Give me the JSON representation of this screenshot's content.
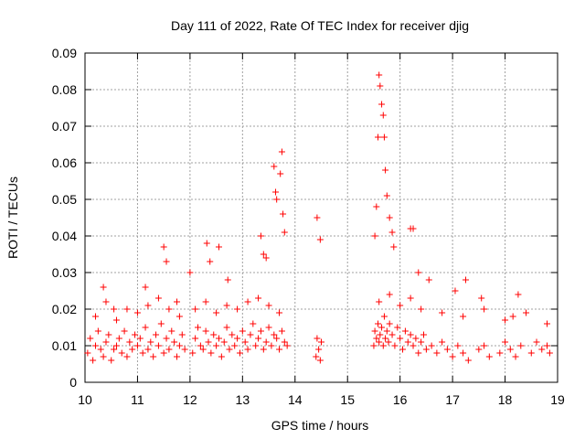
{
  "chart_data": {
    "type": "scatter",
    "title": "Day 111 of 2022, Rate Of TEC Index for receiver djig",
    "xlabel": "GPS time / hours",
    "ylabel": "ROTI / TECUs",
    "xlim": [
      10,
      19
    ],
    "ylim": [
      0,
      0.09
    ],
    "xticks": [
      10,
      11,
      12,
      13,
      14,
      15,
      16,
      17,
      18,
      19
    ],
    "yticks": [
      0,
      0.01,
      0.02,
      0.03,
      0.04,
      0.05,
      0.06,
      0.07,
      0.08,
      0.09
    ],
    "xtick_labels": [
      "10",
      "11",
      "12",
      "13",
      "14",
      "15",
      "16",
      "17",
      "18",
      "19"
    ],
    "ytick_labels": [
      "0",
      "0.01",
      "0.02",
      "0.03",
      "0.04",
      "0.05",
      "0.06",
      "0.07",
      "0.08",
      "0.09"
    ],
    "grid": true,
    "marker": "+",
    "color": "#ff0000",
    "series": [
      {
        "name": "ROTI",
        "x": [
          10.05,
          10.1,
          10.15,
          10.2,
          10.25,
          10.3,
          10.35,
          10.4,
          10.45,
          10.5,
          10.55,
          10.6,
          10.65,
          10.7,
          10.75,
          10.8,
          10.85,
          10.9,
          10.95,
          11.0,
          11.05,
          11.1,
          11.15,
          11.2,
          11.25,
          11.3,
          11.35,
          11.4,
          11.45,
          11.5,
          11.55,
          11.6,
          11.65,
          11.7,
          11.75,
          11.8,
          11.85,
          11.9,
          12.05,
          12.1,
          12.15,
          12.2,
          12.25,
          12.3,
          12.35,
          12.4,
          12.45,
          12.5,
          12.55,
          12.6,
          12.65,
          12.7,
          12.75,
          12.8,
          12.85,
          12.9,
          12.95,
          13.0,
          13.05,
          13.1,
          13.15,
          13.2,
          13.25,
          13.3,
          13.35,
          13.4,
          13.45,
          13.5,
          13.55,
          13.6,
          13.65,
          13.7,
          13.75,
          13.8,
          13.85,
          14.4,
          14.42,
          14.45,
          14.48,
          14.5,
          15.5,
          15.52,
          15.55,
          15.58,
          15.6,
          15.62,
          15.65,
          15.68,
          15.7,
          15.72,
          15.75,
          15.78,
          15.8,
          15.85,
          15.9,
          15.95,
          16.0,
          16.05,
          16.1,
          16.15,
          16.2,
          16.25,
          16.3,
          16.35,
          16.4,
          16.45,
          16.5,
          16.6,
          16.7,
          16.8,
          16.9,
          17.0,
          17.1,
          17.2,
          17.3,
          17.5,
          17.6,
          17.7,
          17.9,
          18.0,
          18.1,
          18.2,
          18.3,
          18.5,
          18.6,
          18.7,
          18.8,
          18.85,
          10.2,
          10.4,
          10.6,
          10.8,
          11.0,
          11.2,
          11.4,
          11.6,
          11.8,
          12.1,
          12.3,
          12.5,
          12.7,
          12.9,
          13.1,
          13.3,
          13.5,
          13.7,
          15.6,
          15.8,
          16.0,
          16.2,
          16.4,
          16.8,
          17.2,
          17.6,
          18.0,
          18.4,
          18.8,
          10.35,
          10.55,
          11.15,
          11.5,
          11.55,
          11.75,
          12.0,
          12.32,
          12.38,
          12.55,
          12.72,
          13.35,
          13.4,
          13.45,
          13.6,
          13.63,
          13.65,
          13.72,
          13.75,
          13.77,
          13.8,
          14.42,
          14.48,
          15.52,
          15.55,
          15.58,
          15.6,
          15.62,
          15.65,
          15.68,
          15.7,
          15.72,
          15.75,
          15.8,
          15.85,
          15.88,
          16.2,
          16.25,
          16.35,
          16.55,
          17.05,
          17.25,
          17.55,
          18.15,
          18.25
        ],
        "y": [
          0.008,
          0.012,
          0.006,
          0.01,
          0.014,
          0.009,
          0.007,
          0.011,
          0.013,
          0.006,
          0.009,
          0.01,
          0.012,
          0.008,
          0.014,
          0.007,
          0.011,
          0.009,
          0.013,
          0.01,
          0.012,
          0.008,
          0.015,
          0.009,
          0.011,
          0.007,
          0.013,
          0.01,
          0.016,
          0.008,
          0.012,
          0.009,
          0.014,
          0.011,
          0.007,
          0.01,
          0.013,
          0.009,
          0.008,
          0.012,
          0.015,
          0.01,
          0.009,
          0.014,
          0.011,
          0.008,
          0.013,
          0.01,
          0.012,
          0.007,
          0.011,
          0.015,
          0.009,
          0.013,
          0.01,
          0.012,
          0.008,
          0.014,
          0.011,
          0.009,
          0.013,
          0.016,
          0.01,
          0.012,
          0.014,
          0.009,
          0.011,
          0.015,
          0.01,
          0.013,
          0.012,
          0.009,
          0.014,
          0.011,
          0.01,
          0.007,
          0.012,
          0.009,
          0.006,
          0.011,
          0.01,
          0.014,
          0.012,
          0.016,
          0.011,
          0.013,
          0.015,
          0.01,
          0.018,
          0.012,
          0.014,
          0.011,
          0.016,
          0.013,
          0.01,
          0.015,
          0.012,
          0.009,
          0.014,
          0.011,
          0.013,
          0.01,
          0.012,
          0.008,
          0.011,
          0.013,
          0.009,
          0.01,
          0.008,
          0.011,
          0.009,
          0.007,
          0.01,
          0.008,
          0.006,
          0.009,
          0.01,
          0.007,
          0.008,
          0.011,
          0.009,
          0.007,
          0.01,
          0.008,
          0.011,
          0.009,
          0.01,
          0.008,
          0.018,
          0.022,
          0.017,
          0.02,
          0.019,
          0.021,
          0.023,
          0.02,
          0.018,
          0.02,
          0.022,
          0.019,
          0.021,
          0.02,
          0.022,
          0.023,
          0.021,
          0.019,
          0.022,
          0.024,
          0.021,
          0.023,
          0.02,
          0.019,
          0.018,
          0.02,
          0.017,
          0.019,
          0.016,
          0.026,
          0.02,
          0.026,
          0.037,
          0.033,
          0.022,
          0.03,
          0.038,
          0.033,
          0.037,
          0.028,
          0.04,
          0.035,
          0.034,
          0.059,
          0.052,
          0.05,
          0.057,
          0.063,
          0.046,
          0.041,
          0.045,
          0.039,
          0.04,
          0.048,
          0.067,
          0.084,
          0.081,
          0.076,
          0.073,
          0.067,
          0.058,
          0.051,
          0.045,
          0.041,
          0.037,
          0.042,
          0.042,
          0.03,
          0.028,
          0.025,
          0.028,
          0.023,
          0.018,
          0.024
        ]
      }
    ]
  }
}
